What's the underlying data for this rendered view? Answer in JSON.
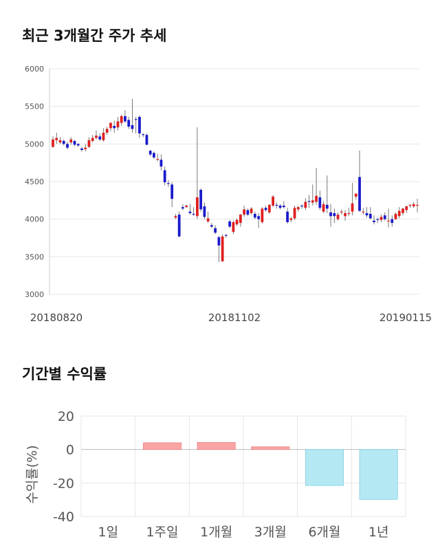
{
  "titles": {
    "price_chart": "최근 3개월간 주가 추세",
    "return_chart": "기간별 수익률"
  },
  "colors": {
    "up": "#e02020",
    "down": "#1a1acc",
    "grid": "#e6e6e6",
    "return_positive": "#f9a5a5",
    "return_negative": "#b4e9f4"
  },
  "chart_data": [
    {
      "type": "candlestick",
      "title": "최근 3개월간 주가 추세",
      "y_ticks": [
        "6000",
        "5500",
        "5000",
        "4500",
        "4000",
        "3500",
        "3000"
      ],
      "ylim": [
        3000,
        6000
      ],
      "x_labels": [
        "20180820",
        "20181102",
        "20190115"
      ],
      "grid": true,
      "candles": [
        [
          4960,
          5060,
          4950,
          5100
        ],
        [
          5050,
          5080,
          5000,
          5150
        ],
        [
          5020,
          5050,
          5000,
          5090
        ],
        [
          5040,
          5000,
          4980,
          5060
        ],
        [
          5000,
          4950,
          4930,
          5030
        ],
        [
          5020,
          5060,
          4990,
          5090
        ],
        [
          5040,
          4990,
          4970,
          5050
        ],
        [
          5000,
          4980,
          4960,
          5010
        ],
        [
          4940,
          4920,
          4900,
          4960
        ],
        [
          4930,
          4950,
          4900,
          5000
        ],
        [
          4960,
          5050,
          4950,
          5090
        ],
        [
          5040,
          5080,
          5020,
          5120
        ],
        [
          5080,
          5110,
          5060,
          5180
        ],
        [
          5100,
          5060,
          5040,
          5140
        ],
        [
          5050,
          5150,
          5030,
          5210
        ],
        [
          5150,
          5200,
          5120,
          5230
        ],
        [
          5210,
          5280,
          5170,
          5290
        ],
        [
          5240,
          5210,
          5150,
          5310
        ],
        [
          5220,
          5300,
          5180,
          5360
        ],
        [
          5280,
          5370,
          5240,
          5390
        ],
        [
          5370,
          5300,
          5280,
          5450
        ],
        [
          5320,
          5230,
          5200,
          5360
        ],
        [
          5250,
          5200,
          5150,
          5600
        ],
        [
          5330,
          5320,
          5140,
          5360
        ],
        [
          5360,
          5140,
          5080,
          5380
        ],
        [
          5130,
          5120,
          5090,
          5140
        ],
        [
          5120,
          4990,
          4980,
          5140
        ],
        [
          4910,
          4860,
          4840,
          4920
        ],
        [
          4880,
          4820,
          4800,
          4900
        ],
        [
          4790,
          4800,
          4770,
          4870
        ],
        [
          4790,
          4700,
          4650,
          4860
        ],
        [
          4650,
          4490,
          4450,
          4700
        ],
        [
          4480,
          4470,
          4430,
          4520
        ],
        [
          4460,
          4270,
          4160,
          4490
        ],
        [
          4020,
          4040,
          4000,
          4070
        ],
        [
          4060,
          3770,
          3760,
          4100
        ],
        [
          4160,
          4140,
          4120,
          4200
        ],
        [
          4160,
          4180,
          4150,
          4190
        ],
        [
          4100,
          4080,
          4060,
          4200
        ],
        [
          4070,
          4060,
          4040,
          4160
        ],
        [
          4040,
          4290,
          4000,
          5220
        ],
        [
          4390,
          4130,
          4100,
          4410
        ],
        [
          4170,
          4030,
          4000,
          4220
        ],
        [
          3970,
          4010,
          3950,
          4100
        ],
        [
          3920,
          3900,
          3880,
          3950
        ],
        [
          3880,
          3820,
          3800,
          3920
        ],
        [
          3760,
          3650,
          3430,
          3780
        ],
        [
          3440,
          3770,
          3430,
          3800
        ],
        [
          3790,
          3780,
          3750,
          3800
        ],
        [
          3970,
          3900,
          3880,
          3990
        ],
        [
          3830,
          3960,
          3800,
          3980
        ],
        [
          3930,
          3990,
          3910,
          4010
        ],
        [
          3950,
          4060,
          3900,
          4070
        ],
        [
          4060,
          4130,
          4030,
          4180
        ],
        [
          4120,
          4060,
          4040,
          4140
        ],
        [
          4080,
          4140,
          4060,
          4160
        ],
        [
          4070,
          4020,
          4000,
          4100
        ],
        [
          4040,
          4000,
          3880,
          4080
        ],
        [
          3960,
          4140,
          3940,
          4160
        ],
        [
          4150,
          4120,
          4100,
          4180
        ],
        [
          4090,
          4190,
          4070,
          4200
        ],
        [
          4180,
          4300,
          4160,
          4320
        ],
        [
          4190,
          4180,
          4140,
          4220
        ],
        [
          4180,
          4150,
          4130,
          4200
        ],
        [
          4180,
          4160,
          4140,
          4240
        ],
        [
          4100,
          3960,
          3940,
          4150
        ],
        [
          3990,
          4010,
          3960,
          4030
        ],
        [
          4010,
          4150,
          3990,
          4180
        ],
        [
          4130,
          4160,
          4100,
          4180
        ],
        [
          4180,
          4170,
          4140,
          4200
        ],
        [
          4150,
          4230,
          4120,
          4280
        ],
        [
          4240,
          4230,
          4150,
          4320
        ],
        [
          4220,
          4250,
          4180,
          4460
        ],
        [
          4230,
          4310,
          4190,
          4680
        ],
        [
          4290,
          4150,
          4120,
          4380
        ],
        [
          4100,
          4200,
          4080,
          4240
        ],
        [
          4190,
          4140,
          4080,
          4580
        ],
        [
          4090,
          4040,
          3900,
          4200
        ],
        [
          4080,
          4040,
          3950,
          4140
        ],
        [
          4000,
          4060,
          3980,
          4090
        ],
        [
          4090,
          4100,
          4060,
          4130
        ],
        [
          4040,
          4080,
          3980,
          4120
        ],
        [
          4070,
          4080,
          4040,
          4150
        ],
        [
          4100,
          4210,
          4050,
          4480
        ],
        [
          4300,
          4340,
          4260,
          4340
        ],
        [
          4560,
          4110,
          4100,
          4910
        ],
        [
          4100,
          4100,
          4060,
          4150
        ],
        [
          4080,
          4050,
          4020,
          4160
        ],
        [
          4070,
          4010,
          4000,
          4160
        ],
        [
          3980,
          3960,
          3930,
          4050
        ],
        [
          4000,
          3990,
          3950,
          4020
        ],
        [
          3990,
          4030,
          3960,
          4060
        ],
        [
          4050,
          4000,
          3980,
          4090
        ],
        [
          3980,
          3980,
          3890,
          4140
        ],
        [
          4000,
          3950,
          3900,
          4050
        ],
        [
          4000,
          4070,
          3990,
          4090
        ],
        [
          4040,
          4110,
          4010,
          4160
        ],
        [
          4080,
          4140,
          4050,
          4150
        ],
        [
          4120,
          4170,
          4080,
          4180
        ],
        [
          4180,
          4190,
          4150,
          4200
        ],
        [
          4170,
          4200,
          4150,
          4230
        ],
        [
          4180,
          4190,
          4090,
          4270
        ]
      ]
    },
    {
      "type": "bar",
      "title": "기간별 수익률",
      "ylabel": "수익률(%)",
      "ylim": [
        -40,
        20
      ],
      "y_ticks": [
        "20",
        "0",
        "-20",
        "-40"
      ],
      "categories": [
        "1일",
        "1주일",
        "1개월",
        "3개월",
        "6개월",
        "1년"
      ],
      "values": [
        0,
        4,
        4.2,
        1.6,
        -21.5,
        -29.8
      ],
      "grid": true
    }
  ]
}
